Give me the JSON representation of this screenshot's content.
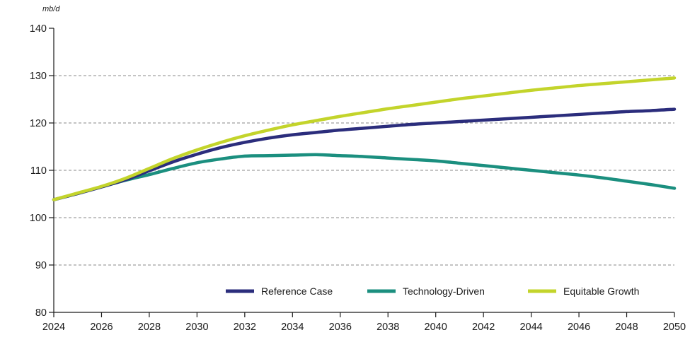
{
  "chart_data": {
    "type": "line",
    "unit_label": "mb/d",
    "xlim": [
      2024,
      2050
    ],
    "ylim": [
      80,
      140
    ],
    "x_ticks": [
      2024,
      2026,
      2028,
      2030,
      2032,
      2034,
      2036,
      2038,
      2040,
      2042,
      2044,
      2046,
      2048,
      2050
    ],
    "y_ticks": [
      80,
      90,
      100,
      110,
      120,
      130,
      140
    ],
    "grid": "horizontal dashed",
    "legend_position": "bottom-right",
    "x": [
      2024,
      2025,
      2026,
      2027,
      2028,
      2029,
      2030,
      2031,
      2032,
      2033,
      2034,
      2035,
      2036,
      2037,
      2038,
      2039,
      2040,
      2041,
      2042,
      2043,
      2044,
      2045,
      2046,
      2047,
      2048,
      2049,
      2050
    ],
    "series": [
      {
        "name": "Reference Case",
        "color": "#2b2d7c",
        "values": [
          103.8,
          105.1,
          106.5,
          108.0,
          109.9,
          111.8,
          113.4,
          114.8,
          115.9,
          116.8,
          117.5,
          118.0,
          118.5,
          118.9,
          119.3,
          119.7,
          120.0,
          120.3,
          120.6,
          120.9,
          121.2,
          121.5,
          121.8,
          122.1,
          122.4,
          122.6,
          122.9
        ]
      },
      {
        "name": "Technology-Driven",
        "color": "#1b8f7f",
        "values": [
          103.8,
          105.1,
          106.5,
          107.9,
          109.1,
          110.4,
          111.6,
          112.4,
          113.0,
          113.1,
          113.2,
          113.3,
          113.1,
          112.9,
          112.6,
          112.3,
          112.0,
          111.5,
          111.0,
          110.5,
          110.0,
          109.5,
          109.0,
          108.4,
          107.7,
          107.0,
          106.2
        ]
      },
      {
        "name": "Equitable Growth",
        "color": "#c3d42b",
        "values": [
          103.8,
          105.2,
          106.6,
          108.3,
          110.4,
          112.5,
          114.3,
          115.9,
          117.3,
          118.5,
          119.6,
          120.5,
          121.4,
          122.2,
          123.0,
          123.7,
          124.4,
          125.1,
          125.7,
          126.3,
          126.9,
          127.4,
          127.9,
          128.3,
          128.7,
          129.1,
          129.5
        ]
      }
    ]
  }
}
